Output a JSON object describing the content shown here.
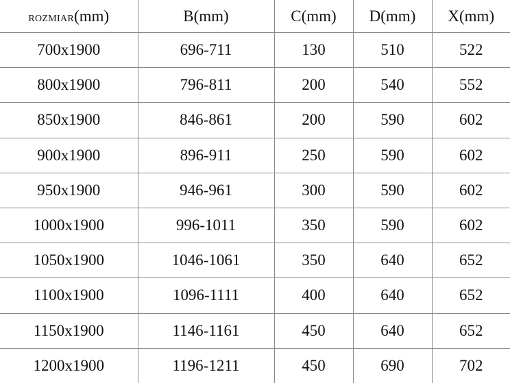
{
  "table": {
    "headers": [
      {
        "prefix": "ROZMIAR",
        "unit": "(mm)"
      },
      {
        "prefix": "B",
        "unit": "(mm)"
      },
      {
        "prefix": "C",
        "unit": "(mm)"
      },
      {
        "prefix": "D",
        "unit": "(mm)"
      },
      {
        "prefix": "X",
        "unit": "(mm)"
      }
    ],
    "rows": [
      [
        "700x1900",
        "696-711",
        "130",
        "510",
        "522"
      ],
      [
        "800x1900",
        "796-811",
        "200",
        "540",
        "552"
      ],
      [
        "850x1900",
        "846-861",
        "200",
        "590",
        "602"
      ],
      [
        "900x1900",
        "896-911",
        "250",
        "590",
        "602"
      ],
      [
        "950x1900",
        "946-961",
        "300",
        "590",
        "602"
      ],
      [
        "1000x1900",
        "996-1011",
        "350",
        "590",
        "602"
      ],
      [
        "1050x1900",
        "1046-1061",
        "350",
        "640",
        "652"
      ],
      [
        "1100x1900",
        "1096-1111",
        "400",
        "640",
        "652"
      ],
      [
        "1150x1900",
        "1146-1161",
        "450",
        "640",
        "652"
      ],
      [
        "1200x1900",
        "1196-1211",
        "450",
        "690",
        "702"
      ]
    ]
  }
}
